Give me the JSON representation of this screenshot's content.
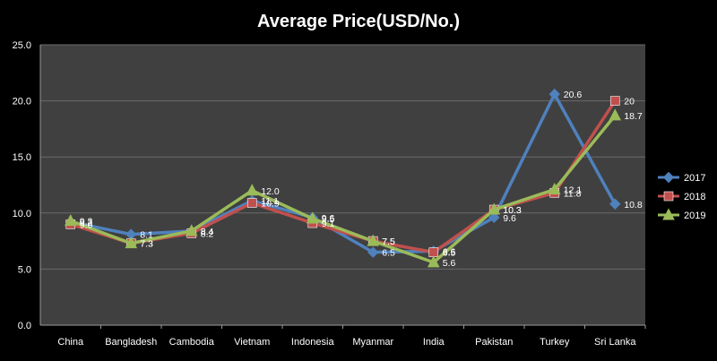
{
  "chart_data": {
    "type": "line",
    "title": "Average Price(USD/No.)",
    "xlabel": "",
    "ylabel": "",
    "categories": [
      "China",
      "Bangladesh",
      "Cambodia",
      "Vietnam",
      "Indonesia",
      "Myanmar",
      "India",
      "Pakistan",
      "Turkey",
      "Sri Lanka"
    ],
    "ylim": [
      0,
      25
    ],
    "yticks": [
      "0.0",
      "5.0",
      "10.0",
      "15.0",
      "20.0",
      "25.0"
    ],
    "grid": true,
    "legend_position": "right",
    "series": [
      {
        "name": "2017",
        "color": "#4f81bd",
        "marker": "diamond",
        "values": [
          9.2,
          8.1,
          8.4,
          11.1,
          9.6,
          6.5,
          6.6,
          9.6,
          20.6,
          10.8
        ],
        "labels": [
          "9.2",
          "8.1",
          "8.4",
          "11.1",
          "9.6",
          "6.5",
          "6.6",
          "9.6",
          "20.6",
          "10.8"
        ]
      },
      {
        "name": "2018",
        "color": "#c0504d",
        "marker": "square",
        "values": [
          9.0,
          7.3,
          8.2,
          10.9,
          9.1,
          7.5,
          6.5,
          10.3,
          11.8,
          20.0
        ],
        "labels": [
          "9.0",
          "7.3",
          "8.2",
          "10.9",
          "9.1",
          "7.5",
          "6.5",
          "10.3",
          "11.8",
          "20"
        ]
      },
      {
        "name": "2019",
        "color": "#9bbb59",
        "marker": "triangle",
        "values": [
          9.3,
          7.3,
          8.4,
          12.0,
          9.5,
          7.5,
          5.6,
          10.3,
          12.1,
          18.7
        ],
        "labels": [
          "9.3",
          "7.3",
          "8.4",
          "12.0",
          "9.5",
          "7.5",
          "5.6",
          "10.3",
          "12.1",
          "18.7"
        ]
      }
    ]
  }
}
